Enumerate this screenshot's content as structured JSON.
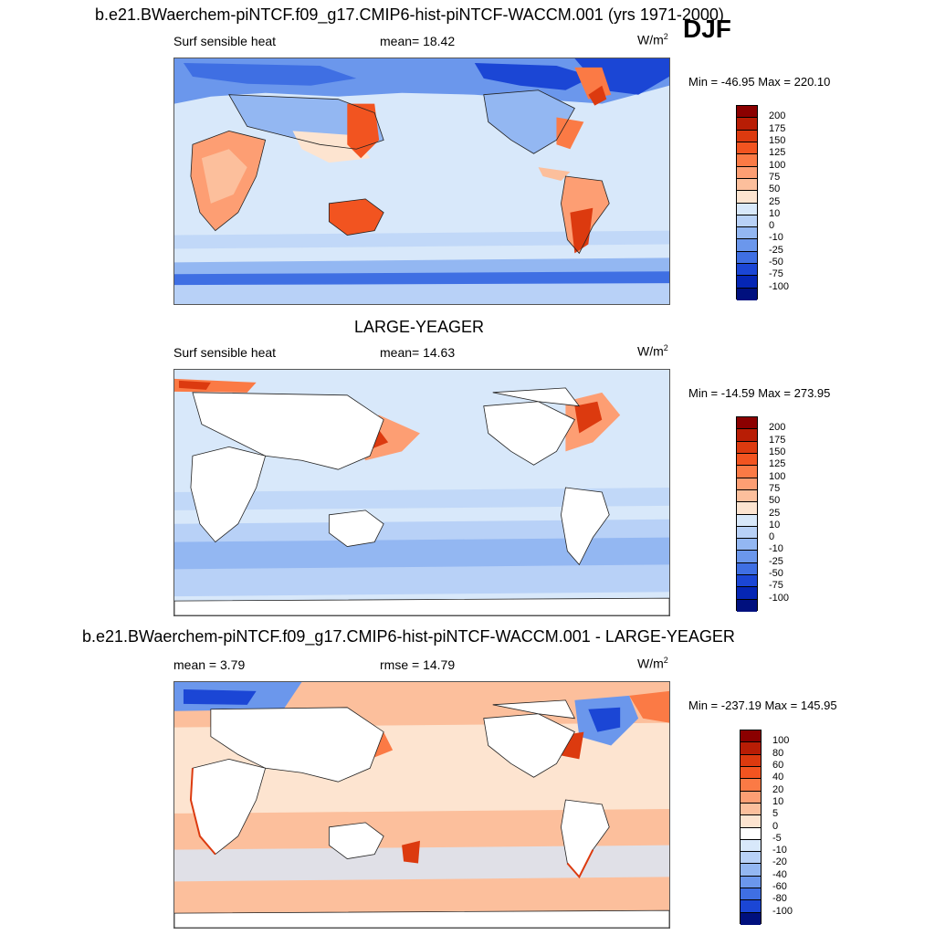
{
  "season": "DJF",
  "panels": [
    {
      "title": "b.e21.BWaerchem-piNTCF.f09_g17.CMIP6-hist-piNTCF-WACCM.001 (yrs 1971-2000)",
      "left_label": "Surf sensible heat",
      "center_label": "mean=  18.42",
      "units": "W/m",
      "units_sup": "2",
      "minmax": "Min = -46.95 Max = 220.10",
      "levels": [
        "200",
        "175",
        "150",
        "125",
        "100",
        "75",
        "50",
        "25",
        "10",
        "0",
        "-10",
        "-25",
        "-50",
        "-75",
        "-100"
      ],
      "colors": [
        "#8b0000",
        "#b81d05",
        "#dc3a0f",
        "#f25420",
        "#fb7a45",
        "#fd9e73",
        "#fcbf9c",
        "#fde4d0",
        "#d8e8fa",
        "#b8d1f7",
        "#93b7f2",
        "#6b97ec",
        "#3f6fe3",
        "#1b46d5",
        "#0526b5",
        "#00107e"
      ]
    },
    {
      "title": "LARGE-YEAGER",
      "left_label": "Surf sensible heat",
      "center_label": "mean=  14.63",
      "units": "W/m",
      "units_sup": "2",
      "minmax": "Min = -14.59 Max = 273.95",
      "levels": [
        "200",
        "175",
        "150",
        "125",
        "100",
        "75",
        "50",
        "25",
        "10",
        "0",
        "-10",
        "-25",
        "-50",
        "-75",
        "-100"
      ],
      "colors": [
        "#8b0000",
        "#b81d05",
        "#dc3a0f",
        "#f25420",
        "#fb7a45",
        "#fd9e73",
        "#fcbf9c",
        "#fde4d0",
        "#d8e8fa",
        "#b8d1f7",
        "#93b7f2",
        "#6b97ec",
        "#3f6fe3",
        "#1b46d5",
        "#0526b5",
        "#00107e"
      ]
    },
    {
      "title": "b.e21.BWaerchem-piNTCF.f09_g17.CMIP6-hist-piNTCF-WACCM.001 - LARGE-YEAGER",
      "left_label": "mean =   3.79",
      "center_label": "rmse =  14.79",
      "units": "W/m",
      "units_sup": "2",
      "minmax": "Min = -237.19 Max = 145.95",
      "levels": [
        "100",
        "80",
        "60",
        "40",
        "20",
        "10",
        "5",
        "0",
        "-5",
        "-10",
        "-20",
        "-40",
        "-60",
        "-80",
        "-100"
      ],
      "colors": [
        "#8b0000",
        "#b81d05",
        "#dc3a0f",
        "#f25420",
        "#fb7a45",
        "#fd9e73",
        "#fcbf9c",
        "#fde4d0",
        "#ffffff",
        "#d8e8fa",
        "#b8d1f7",
        "#93b7f2",
        "#6b97ec",
        "#3f6fe3",
        "#1b46d5",
        "#00107e"
      ]
    }
  ]
}
